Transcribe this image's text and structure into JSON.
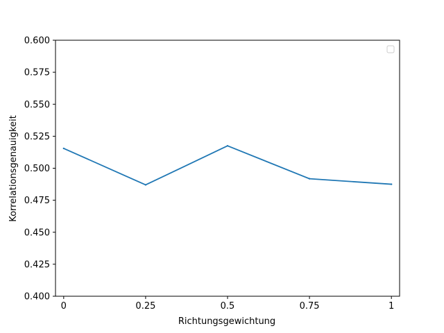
{
  "chart_data": {
    "type": "line",
    "title": "",
    "xlabel": "Richtungsgewichtung",
    "ylabel": "Korrelationsgenauigkeit",
    "categories": [
      "0",
      "0.25",
      "0.5",
      "0.75",
      "1"
    ],
    "series": [
      {
        "values": [
          0.5155,
          0.487,
          0.5175,
          0.4918,
          0.4875
        ],
        "color": "#1f77b4"
      }
    ],
    "ylim": [
      0.4,
      0.6
    ],
    "yticks": [
      "0.400",
      "0.425",
      "0.450",
      "0.475",
      "0.500",
      "0.525",
      "0.550",
      "0.575",
      "0.600"
    ],
    "grid": false,
    "legend": {
      "position": "top-right",
      "entries": []
    }
  }
}
